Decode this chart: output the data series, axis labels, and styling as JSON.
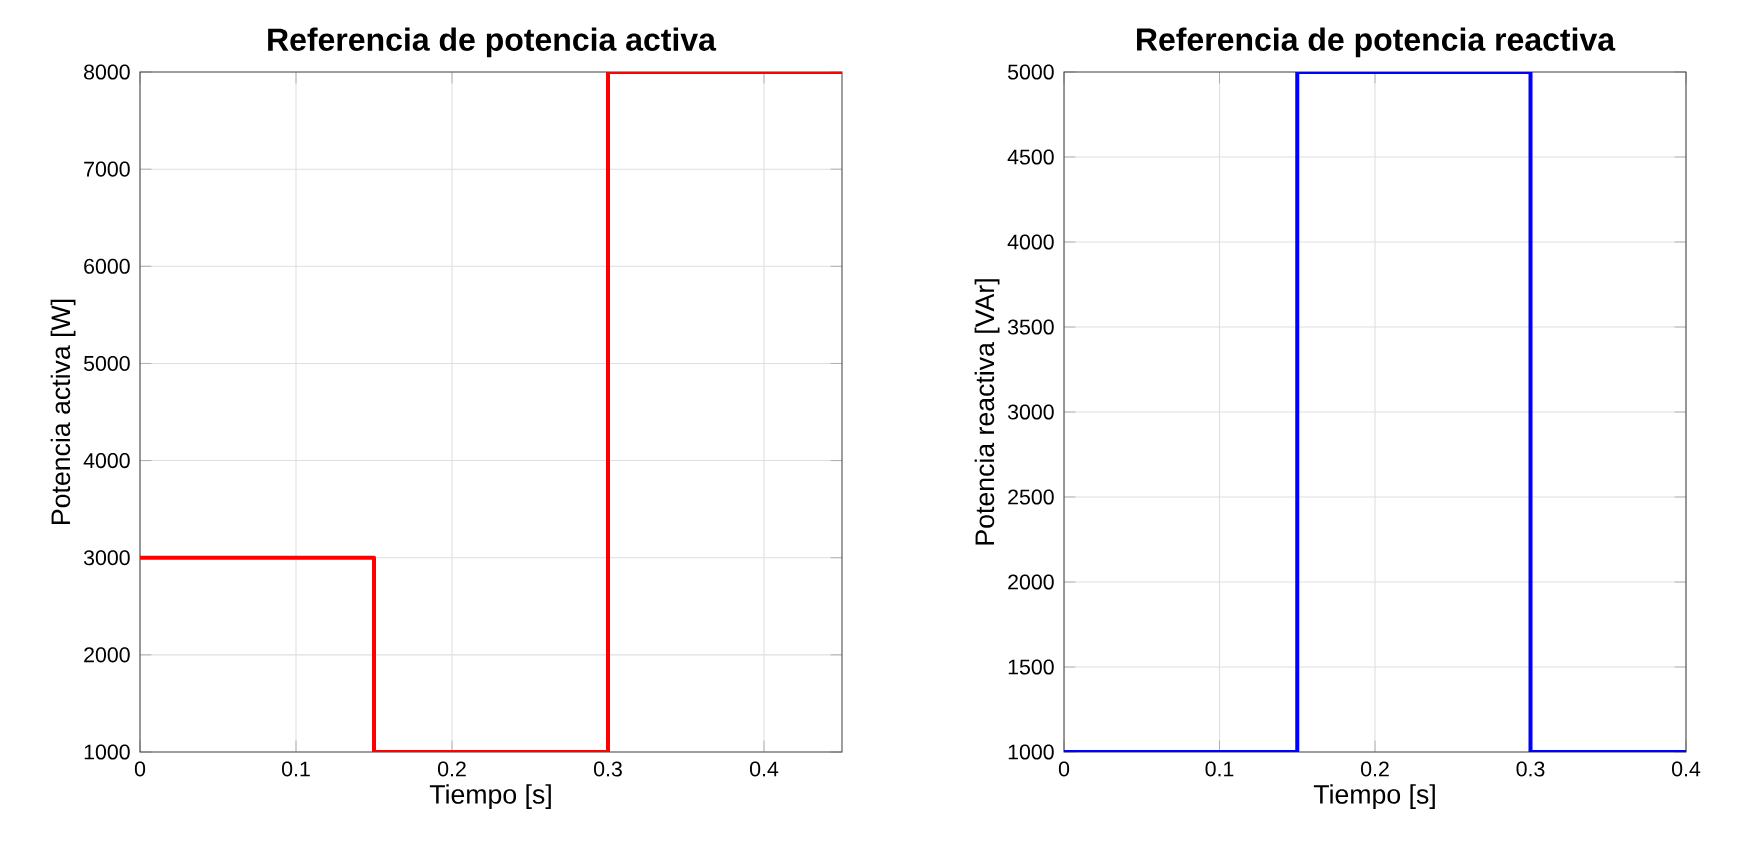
{
  "chart_data": [
    {
      "type": "step",
      "title": "Referencia de potencia activa",
      "xlabel": "Tiempo [s]",
      "ylabel": "Potencia activa [W]",
      "x": [
        0,
        0.15,
        0.3,
        0.45
      ],
      "values": [
        3000,
        1000,
        8000,
        8000
      ],
      "color": "#ff0000",
      "xlim": [
        0,
        0.45
      ],
      "ylim": [
        1000,
        8000
      ],
      "xticks": [
        0,
        0.1,
        0.2,
        0.3,
        0.4
      ],
      "yticks": [
        1000,
        2000,
        3000,
        4000,
        5000,
        6000,
        7000,
        8000
      ],
      "grid": true
    },
    {
      "type": "step",
      "title": "Referencia de potencia reactiva",
      "xlabel": "Tiempo [s]",
      "ylabel": "Potencia reactiva [VAr]",
      "x": [
        0,
        0.15,
        0.3,
        0.4
      ],
      "values": [
        1000,
        5000,
        1000,
        1000
      ],
      "color": "#0000ff",
      "xlim": [
        0,
        0.4
      ],
      "ylim": [
        1000,
        5000
      ],
      "xticks": [
        0,
        0.1,
        0.2,
        0.3,
        0.4
      ],
      "yticks": [
        1000,
        1500,
        2000,
        2500,
        3000,
        3500,
        4000,
        4500,
        5000
      ],
      "grid": true
    }
  ]
}
